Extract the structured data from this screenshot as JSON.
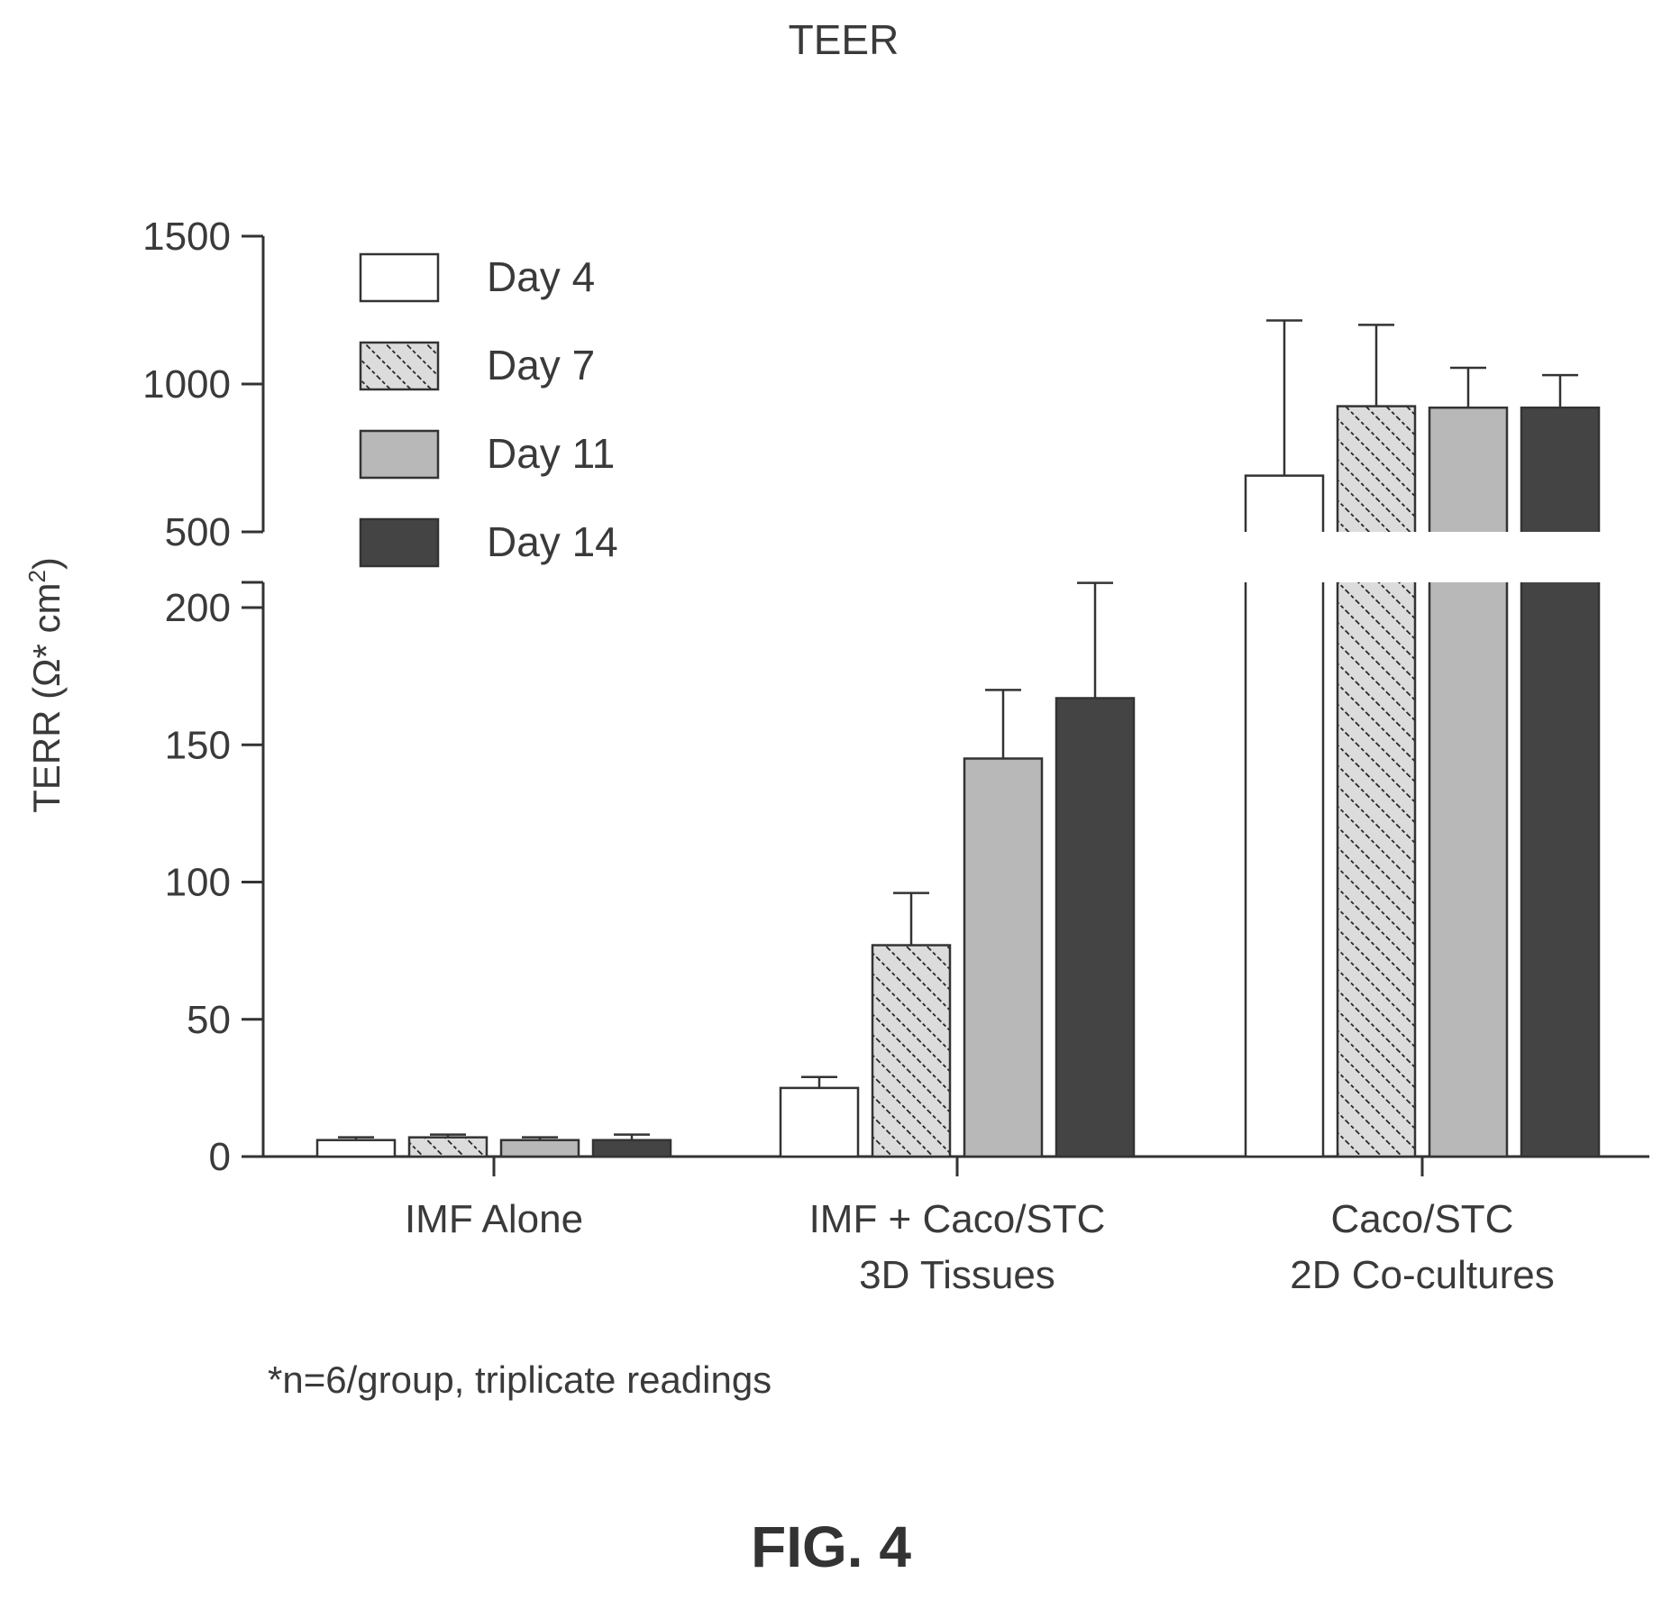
{
  "page": {
    "title": "TEER",
    "footnote": "*n=6/group, triplicate readings",
    "figure_label": "FIG. 4"
  },
  "chart_data": {
    "type": "bar",
    "title": "TEER",
    "ylabel": "TERR (Ω* cm",
    "ylabel_sup": "2",
    "ylabel_close": ")",
    "categories": [
      [
        "IMF Alone"
      ],
      [
        "IMF + Caco/STC",
        "3D Tissues"
      ],
      [
        "Caco/STC",
        "2D Co-cultures"
      ]
    ],
    "series": [
      {
        "name": "Day 4",
        "values": [
          6,
          25,
          690
        ],
        "errors": [
          1,
          4,
          525
        ]
      },
      {
        "name": "Day 7",
        "values": [
          7,
          77,
          925
        ],
        "errors": [
          1,
          19,
          275
        ]
      },
      {
        "name": "Day 11",
        "values": [
          6,
          145,
          920
        ],
        "errors": [
          1,
          25,
          135
        ]
      },
      {
        "name": "Day 14",
        "values": [
          6,
          167,
          920
        ],
        "errors": [
          2,
          42,
          110
        ]
      }
    ],
    "axis_break": {
      "lower_max": 210,
      "upper_min": 500
    },
    "lower_ticks": [
      "0",
      "50",
      "100",
      "150",
      "200"
    ],
    "upper_ticks": [
      "500",
      "1000",
      "1500"
    ],
    "ylim": [
      0,
      1500
    ],
    "legend_position": "top-left",
    "grid": false
  }
}
